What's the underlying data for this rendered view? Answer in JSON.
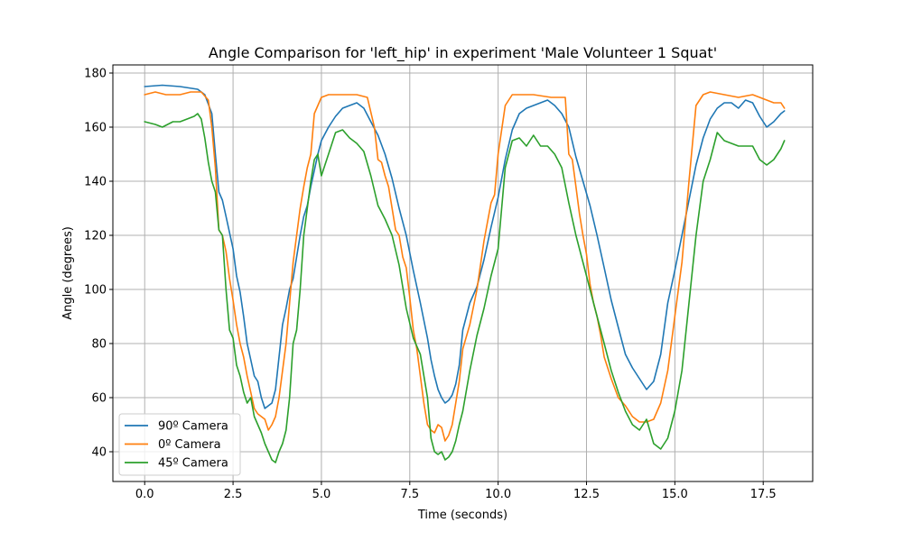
{
  "chart_data": {
    "type": "line",
    "title": "Angle Comparison for 'left_hip' in experiment 'Male Volunteer 1 Squat'",
    "xlabel": "Time (seconds)",
    "ylabel": "Angle (degrees)",
    "xlim": [
      -0.9,
      18.9
    ],
    "ylim": [
      29,
      183
    ],
    "xticks": [
      0.0,
      2.5,
      5.0,
      7.5,
      10.0,
      12.5,
      15.0,
      17.5
    ],
    "xtick_labels": [
      "0.0",
      "2.5",
      "5.0",
      "7.5",
      "10.0",
      "12.5",
      "15.0",
      "17.5"
    ],
    "yticks": [
      40,
      60,
      80,
      100,
      120,
      140,
      160,
      180
    ],
    "ytick_labels": [
      "40",
      "60",
      "80",
      "100",
      "120",
      "140",
      "160",
      "180"
    ],
    "grid": true,
    "legend_position": "lower-left",
    "series": [
      {
        "name": "90º Camera",
        "color": "#1f77b4",
        "x": [
          0,
          0.5,
          1.0,
          1.5,
          1.7,
          1.9,
          2.0,
          2.1,
          2.2,
          2.3,
          2.4,
          2.5,
          2.6,
          2.7,
          2.8,
          2.9,
          3.0,
          3.1,
          3.2,
          3.3,
          3.4,
          3.5,
          3.6,
          3.7,
          3.8,
          3.9,
          4.0,
          4.1,
          4.2,
          4.3,
          4.4,
          4.5,
          4.6,
          4.7,
          4.8,
          4.9,
          5.0,
          5.2,
          5.4,
          5.6,
          5.8,
          6.0,
          6.2,
          6.4,
          6.6,
          6.8,
          7.0,
          7.2,
          7.4,
          7.6,
          7.8,
          8.0,
          8.1,
          8.2,
          8.3,
          8.4,
          8.5,
          8.6,
          8.7,
          8.8,
          8.9,
          9.0,
          9.2,
          9.4,
          9.6,
          9.8,
          10.0,
          10.2,
          10.4,
          10.6,
          10.8,
          11.0,
          11.2,
          11.4,
          11.6,
          11.8,
          12.0,
          12.2,
          12.4,
          12.6,
          12.8,
          13.0,
          13.2,
          13.4,
          13.6,
          13.8,
          14.0,
          14.2,
          14.4,
          14.6,
          14.8,
          15.0,
          15.2,
          15.4,
          15.6,
          15.8,
          16.0,
          16.2,
          16.4,
          16.6,
          16.8,
          17.0,
          17.2,
          17.4,
          17.6,
          17.8,
          18.0,
          18.1
        ],
        "y": [
          175,
          175.5,
          175,
          174,
          172,
          165,
          150,
          136,
          133,
          127,
          121,
          115,
          105,
          99,
          90,
          80,
          74,
          68,
          66,
          60,
          56,
          57,
          58,
          63,
          75,
          87,
          93,
          100,
          104,
          112,
          120,
          127,
          131,
          138,
          144,
          150,
          155,
          160,
          164,
          167,
          168,
          169,
          167,
          162,
          157,
          150,
          141,
          130,
          120,
          107,
          95,
          82,
          74,
          68,
          63,
          60,
          58,
          59,
          61,
          65,
          72,
          85,
          95,
          101,
          111,
          123,
          134,
          148,
          159,
          165,
          167,
          168,
          169,
          170,
          168,
          165,
          160,
          149,
          140,
          131,
          120,
          108,
          96,
          86,
          76,
          71,
          67,
          63,
          66,
          76,
          95,
          107,
          120,
          133,
          146,
          156,
          163,
          167,
          169,
          169,
          167,
          170,
          169,
          164,
          160,
          162,
          165,
          166
        ]
      },
      {
        "name": "0º Camera",
        "color": "#ff7f0e",
        "x": [
          0,
          0.3,
          0.6,
          1.0,
          1.3,
          1.6,
          1.8,
          1.9,
          2.0,
          2.1,
          2.2,
          2.3,
          2.4,
          2.5,
          2.6,
          2.7,
          2.8,
          2.9,
          3.0,
          3.1,
          3.2,
          3.3,
          3.4,
          3.5,
          3.6,
          3.7,
          3.8,
          3.9,
          4.0,
          4.1,
          4.2,
          4.3,
          4.4,
          4.5,
          4.6,
          4.7,
          4.8,
          4.9,
          5.0,
          5.2,
          5.5,
          6.0,
          6.3,
          6.5,
          6.6,
          6.7,
          6.8,
          6.9,
          7.0,
          7.1,
          7.2,
          7.3,
          7.4,
          7.5,
          7.6,
          7.7,
          7.8,
          7.9,
          8.0,
          8.1,
          8.2,
          8.3,
          8.4,
          8.5,
          8.6,
          8.7,
          8.8,
          8.9,
          9.0,
          9.2,
          9.4,
          9.6,
          9.8,
          9.9,
          10.0,
          10.2,
          10.4,
          10.6,
          11.0,
          11.5,
          11.9,
          12.0,
          12.1,
          12.2,
          12.3,
          12.4,
          12.5,
          12.6,
          12.7,
          12.8,
          12.9,
          13.0,
          13.2,
          13.4,
          13.6,
          13.8,
          14.0,
          14.2,
          14.4,
          14.6,
          14.8,
          15.0,
          15.2,
          15.4,
          15.6,
          15.8,
          16.0,
          16.4,
          16.8,
          17.2,
          17.6,
          17.8,
          18.0,
          18.1
        ],
        "y": [
          172,
          173,
          172,
          172,
          173,
          173,
          170,
          160,
          145,
          122,
          120,
          114,
          104,
          96,
          87,
          80,
          75,
          68,
          62,
          56,
          54,
          53,
          52,
          48,
          50,
          53,
          60,
          70,
          80,
          95,
          110,
          120,
          130,
          138,
          145,
          150,
          165,
          168,
          171,
          172,
          172,
          172,
          171,
          160,
          148,
          147,
          142,
          138,
          130,
          122,
          120,
          112,
          108,
          97,
          85,
          78,
          68,
          58,
          50,
          48,
          47,
          50,
          49,
          44,
          46,
          50,
          58,
          66,
          78,
          87,
          100,
          118,
          132,
          135,
          150,
          168,
          172,
          172,
          172,
          171,
          171,
          150,
          148,
          138,
          128,
          120,
          113,
          102,
          95,
          90,
          83,
          75,
          67,
          60,
          57,
          53,
          51,
          51,
          52,
          58,
          70,
          90,
          110,
          140,
          168,
          172,
          173,
          172,
          171,
          172,
          170,
          169,
          169,
          167
        ]
      },
      {
        "name": "45º Camera",
        "color": "#2ca02c",
        "x": [
          0,
          0.3,
          0.5,
          0.8,
          1.0,
          1.2,
          1.4,
          1.5,
          1.6,
          1.7,
          1.8,
          1.9,
          2.0,
          2.1,
          2.2,
          2.3,
          2.4,
          2.5,
          2.6,
          2.7,
          2.8,
          2.9,
          3.0,
          3.1,
          3.2,
          3.3,
          3.4,
          3.5,
          3.6,
          3.7,
          3.8,
          3.9,
          4.0,
          4.1,
          4.2,
          4.3,
          4.4,
          4.5,
          4.6,
          4.7,
          4.8,
          4.9,
          5.0,
          5.2,
          5.4,
          5.6,
          5.8,
          6.0,
          6.2,
          6.4,
          6.6,
          6.8,
          7.0,
          7.2,
          7.4,
          7.6,
          7.8,
          8.0,
          8.1,
          8.2,
          8.3,
          8.4,
          8.5,
          8.6,
          8.7,
          8.8,
          8.9,
          9.0,
          9.2,
          9.4,
          9.6,
          9.8,
          10.0,
          10.2,
          10.4,
          10.6,
          10.8,
          11.0,
          11.2,
          11.4,
          11.6,
          11.8,
          12.0,
          12.2,
          12.4,
          12.6,
          12.8,
          13.0,
          13.2,
          13.4,
          13.6,
          13.8,
          14.0,
          14.2,
          14.4,
          14.6,
          14.8,
          15.0,
          15.2,
          15.4,
          15.6,
          15.8,
          16.0,
          16.2,
          16.4,
          16.8,
          17.2,
          17.4,
          17.6,
          17.8,
          18.0,
          18.1
        ],
        "y": [
          162,
          161,
          160,
          162,
          162,
          163,
          164,
          165,
          163,
          156,
          147,
          140,
          136,
          122,
          120,
          100,
          85,
          82,
          72,
          68,
          62,
          58,
          60,
          53,
          50,
          47,
          43,
          40,
          37,
          36,
          40,
          43,
          48,
          60,
          80,
          85,
          100,
          120,
          130,
          140,
          148,
          150,
          142,
          150,
          158,
          159,
          156,
          154,
          151,
          142,
          131,
          126,
          120,
          109,
          93,
          82,
          76,
          60,
          45,
          40,
          39,
          40,
          37,
          38,
          40,
          44,
          50,
          55,
          70,
          83,
          93,
          105,
          115,
          145,
          155,
          156,
          153,
          157,
          153,
          153,
          150,
          145,
          132,
          120,
          110,
          100,
          90,
          80,
          70,
          62,
          55,
          50,
          48,
          52,
          43,
          41,
          45,
          55,
          70,
          95,
          120,
          140,
          148,
          158,
          155,
          153,
          153,
          148,
          146,
          148,
          152,
          155
        ]
      }
    ]
  }
}
